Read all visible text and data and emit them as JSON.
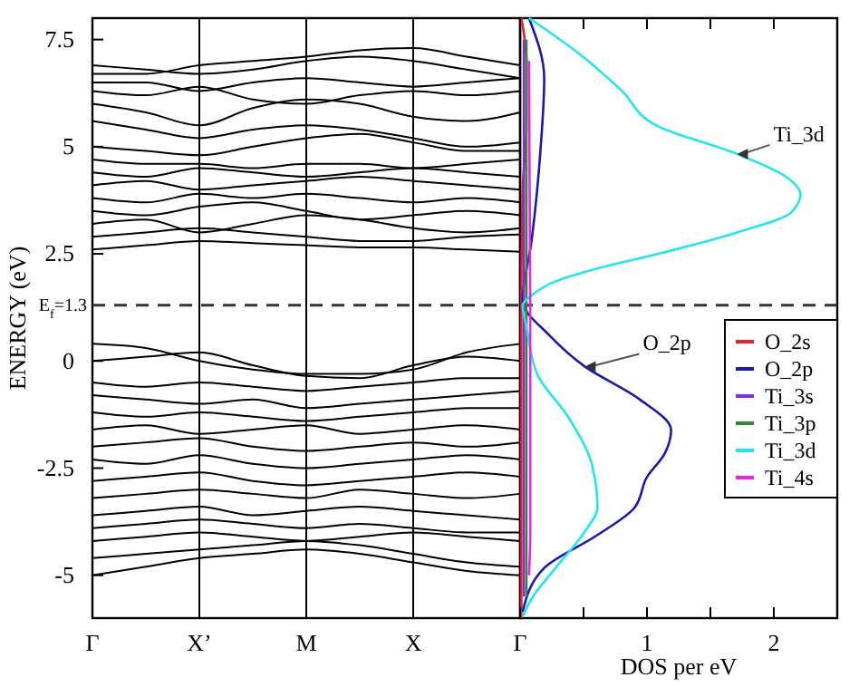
{
  "chart_data": [
    {
      "type": "line",
      "ylabel": "ENERGY (eV)",
      "ylim": [
        -6,
        8
      ],
      "categories": [
        "Γ",
        null,
        "X’",
        null,
        "M",
        null,
        "X",
        null,
        "Γ"
      ],
      "yticks": [
        -5,
        -2.5,
        0,
        2.5,
        5,
        7.5
      ],
      "grid": "x",
      "color": "#000000",
      "ref_lines": [
        {
          "axis": "y",
          "value": 1.3,
          "label": "E$_{f}$=1.3",
          "line_style": "dashed",
          "color": "#333333"
        }
      ],
      "series": [
        {
          "values": [
            2.6,
            2.7,
            2.8,
            2.75,
            2.7,
            2.65,
            2.65,
            2.6,
            2.55
          ]
        },
        {
          "values": [
            2.9,
            3.0,
            3.1,
            3.0,
            2.9,
            2.8,
            2.8,
            2.9,
            2.95
          ]
        },
        {
          "values": [
            3.2,
            3.3,
            3.0,
            3.2,
            3.4,
            3.3,
            3.1,
            3.0,
            3.1
          ]
        },
        {
          "values": [
            3.5,
            3.4,
            3.6,
            3.7,
            3.5,
            3.3,
            3.4,
            3.5,
            3.4
          ]
        },
        {
          "values": [
            3.8,
            3.7,
            3.9,
            3.8,
            3.9,
            3.8,
            3.7,
            3.8,
            3.7
          ]
        },
        {
          "values": [
            4.1,
            4.2,
            4.0,
            4.1,
            4.2,
            4.3,
            4.2,
            4.1,
            4.0
          ]
        },
        {
          "values": [
            4.4,
            4.3,
            4.5,
            4.4,
            4.3,
            4.4,
            4.5,
            4.4,
            4.3
          ]
        },
        {
          "values": [
            4.7,
            4.6,
            4.6,
            4.5,
            4.6,
            4.6,
            4.5,
            4.6,
            4.7
          ]
        },
        {
          "values": [
            5.0,
            4.9,
            4.8,
            5.0,
            5.2,
            5.3,
            5.1,
            4.9,
            4.9
          ]
        },
        {
          "values": [
            5.6,
            5.4,
            5.2,
            5.4,
            5.5,
            5.4,
            5.2,
            5.0,
            5.1
          ]
        },
        {
          "values": [
            6.0,
            5.8,
            5.5,
            5.9,
            6.1,
            6.0,
            5.7,
            5.6,
            5.8
          ]
        },
        {
          "values": [
            6.3,
            6.2,
            6.4,
            6.1,
            6.0,
            6.2,
            6.3,
            6.2,
            6.3
          ]
        },
        {
          "values": [
            6.5,
            6.5,
            6.3,
            6.5,
            6.6,
            6.5,
            6.4,
            6.5,
            6.6
          ]
        },
        {
          "values": [
            6.9,
            6.8,
            6.7,
            6.8,
            7.0,
            7.1,
            7.0,
            6.8,
            6.6
          ]
        },
        {
          "values": [
            6.7,
            6.7,
            6.9,
            7.0,
            7.1,
            7.25,
            7.3,
            7.1,
            6.9
          ]
        },
        {
          "values": [
            0.4,
            0.3,
            0.0,
            -0.2,
            -0.3,
            -0.3,
            -0.2,
            0.2,
            0.4
          ]
        },
        {
          "values": [
            0.0,
            0.1,
            0.2,
            -0.1,
            -0.35,
            -0.4,
            -0.1,
            0.1,
            0.0
          ]
        },
        {
          "values": [
            -0.5,
            -0.6,
            -0.5,
            -0.6,
            -0.7,
            -0.6,
            -0.5,
            -0.4,
            -0.4
          ]
        },
        {
          "values": [
            -0.8,
            -0.9,
            -1.0,
            -0.9,
            -1.1,
            -1.0,
            -0.9,
            -0.8,
            -0.7
          ]
        },
        {
          "values": [
            -1.2,
            -1.3,
            -1.2,
            -1.3,
            -1.4,
            -1.3,
            -1.2,
            -1.1,
            -1.1
          ]
        },
        {
          "values": [
            -1.6,
            -1.5,
            -1.7,
            -1.6,
            -1.5,
            -1.7,
            -1.6,
            -1.5,
            -1.6
          ]
        },
        {
          "values": [
            -2.0,
            -1.9,
            -1.8,
            -2.0,
            -2.1,
            -2.0,
            -1.9,
            -2.0,
            -1.9
          ]
        },
        {
          "values": [
            -2.3,
            -2.4,
            -2.2,
            -2.4,
            -2.5,
            -2.4,
            -2.3,
            -2.2,
            -2.3
          ]
        },
        {
          "values": [
            -2.8,
            -2.7,
            -2.6,
            -2.8,
            -2.9,
            -2.8,
            -2.7,
            -2.6,
            -2.7
          ]
        },
        {
          "values": [
            -3.2,
            -3.1,
            -3.0,
            -3.1,
            -3.2,
            -3.0,
            -3.1,
            -3.2,
            -3.1
          ]
        },
        {
          "values": [
            -3.6,
            -3.5,
            -3.4,
            -3.6,
            -3.5,
            -3.4,
            -3.5,
            -3.6,
            -3.7
          ]
        },
        {
          "values": [
            -3.9,
            -3.8,
            -3.7,
            -3.8,
            -3.9,
            -3.8,
            -3.9,
            -4.0,
            -4.0
          ]
        },
        {
          "values": [
            -4.2,
            -4.1,
            -4.0,
            -4.1,
            -4.2,
            -4.1,
            -4.0,
            -4.1,
            -4.2
          ]
        },
        {
          "values": [
            -4.6,
            -4.5,
            -4.4,
            -4.3,
            -4.2,
            -4.3,
            -4.5,
            -4.7,
            -4.8
          ]
        },
        {
          "values": [
            -5.0,
            -4.8,
            -4.6,
            -4.5,
            -4.4,
            -4.5,
            -4.7,
            -4.9,
            -5.0
          ]
        }
      ]
    },
    {
      "type": "line",
      "xlabel": "DOS per eV",
      "xlim": [
        0,
        2.5
      ],
      "ylim": [
        -6,
        8
      ],
      "tick_labels": "x",
      "xticks": [
        {
          "value": 0,
          "label": null
        },
        {
          "value": 0.5,
          "label": null
        },
        1,
        {
          "value": 1.5,
          "label": null
        },
        2
      ],
      "legend": "right",
      "ref_lines": [
        {
          "axis": "y",
          "value": 1.3,
          "line_style": "dashed",
          "color": "#333333"
        }
      ],
      "annotations": [
        {
          "text": "Ti_3d",
          "x": 1.71,
          "y": 4.83
        },
        {
          "text": "O_2p",
          "x": 0.51,
          "y": -0.13
        }
      ],
      "series": [
        {
          "name": "O_2s",
          "color": "#e8202a",
          "x": [
            0.01,
            0.05,
            0.05,
            0.02,
            0.01,
            0.01,
            0.01
          ],
          "values": [
            8,
            7,
            5.5,
            4,
            1.3,
            -2,
            -6
          ]
        },
        {
          "name": "O_2p",
          "color": "#1a1aa8",
          "x": [
            0.07,
            0.19,
            0.16,
            0.09,
            0.02,
            0.23,
            0.51,
            0.94,
            1.19,
            1.14,
            1.0,
            0.9,
            0.61,
            0.19,
            0.02
          ],
          "values": [
            8.0,
            6.6,
            4.9,
            2.8,
            1.4,
            0.6,
            -0.13,
            -0.89,
            -1.61,
            -2.16,
            -2.71,
            -3.43,
            -4.06,
            -4.83,
            -5.85
          ]
        },
        {
          "name": "Ti_3s",
          "color": "#8a2be2",
          "x": [
            0.03,
            0.03,
            0.03
          ],
          "values": [
            7.5,
            1.3,
            -5.5
          ]
        },
        {
          "name": "Ti_3p",
          "color": "#2e8b2e",
          "x": [
            0.05,
            0.05,
            0.05
          ],
          "values": [
            7.5,
            1.3,
            -5.5
          ]
        },
        {
          "name": "Ti_3d",
          "color": "#22e5ee",
          "x": [
            0.07,
            0.47,
            0.8,
            1.09,
            1.71,
            2.14,
            2.21,
            2.14,
            1.71,
            1.09,
            0.61,
            0.28,
            0.09,
            0.02,
            0.05,
            0.14,
            0.38,
            0.57,
            0.61,
            0.51,
            0.28,
            0.09,
            0.02
          ],
          "values": [
            8.0,
            7.16,
            6.31,
            5.47,
            4.83,
            4.2,
            3.9,
            3.47,
            3.0,
            2.5,
            2.16,
            1.86,
            1.53,
            1.3,
            0.8,
            -0.34,
            -1.31,
            -2.46,
            -3.43,
            -3.98,
            -4.83,
            -5.55,
            -5.97
          ]
        },
        {
          "name": "Ti_4s",
          "color": "#ee22ee",
          "x": [
            0.07,
            0.08,
            0.08,
            0.07
          ],
          "values": [
            7,
            0,
            -4,
            -5
          ]
        }
      ]
    }
  ]
}
